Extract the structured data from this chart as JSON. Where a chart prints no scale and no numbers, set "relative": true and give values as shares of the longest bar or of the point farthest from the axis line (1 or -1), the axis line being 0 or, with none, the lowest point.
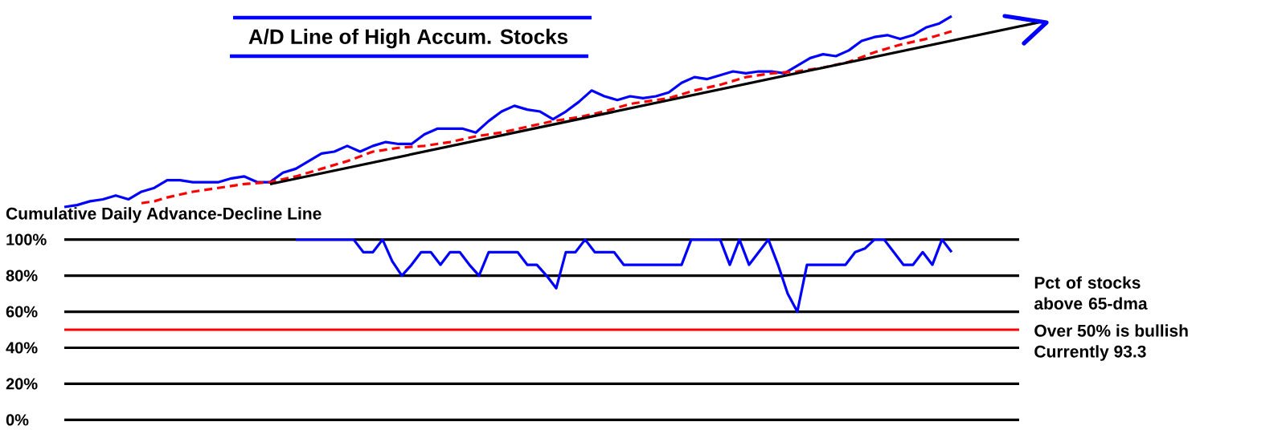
{
  "chart_data": [
    {
      "type": "line",
      "title": "A/D Line of High Accum. Stocks",
      "relative": true,
      "tick_labels": false,
      "marker": "none",
      "annotations": [
        "Cumulative Daily Advance-Decline Line"
      ],
      "categories": [
        null,
        null,
        null,
        null,
        null,
        null,
        null,
        null,
        null,
        null,
        null,
        null,
        null,
        null,
        null,
        null,
        null,
        null,
        null,
        null,
        null,
        null,
        null,
        null,
        null,
        null,
        null,
        null,
        null,
        null,
        null,
        null,
        null,
        null,
        null,
        null,
        null,
        null,
        null,
        null,
        null,
        null,
        null,
        null,
        null,
        null,
        null,
        null,
        null,
        null,
        null,
        null,
        null,
        null,
        null,
        null,
        null,
        null,
        null,
        null,
        null,
        null,
        null,
        null,
        null,
        null,
        null,
        null,
        null,
        null,
        null,
        null,
        null,
        null,
        null,
        null,
        null,
        null
      ],
      "series": [
        {
          "color": "#0000ff",
          "values": [
            0,
            0.01,
            0.03,
            0.04,
            0.06,
            0.04,
            0.08,
            0.1,
            0.14,
            0.14,
            0.13,
            0.13,
            0.13,
            0.15,
            0.16,
            0.13,
            0.13,
            0.18,
            0.2,
            0.24,
            0.28,
            0.29,
            0.32,
            0.29,
            0.32,
            0.34,
            0.33,
            0.33,
            0.38,
            0.41,
            0.41,
            0.41,
            0.39,
            0.45,
            0.5,
            0.53,
            0.51,
            0.5,
            0.46,
            0.5,
            0.55,
            0.61,
            0.58,
            0.56,
            0.58,
            0.57,
            0.58,
            0.6,
            0.65,
            0.68,
            0.67,
            0.69,
            0.71,
            0.7,
            0.71,
            0.71,
            0.7,
            0.74,
            0.78,
            0.8,
            0.79,
            0.82,
            0.87,
            0.89,
            0.9,
            0.88,
            0.9,
            0.94,
            0.96,
            1,
            null,
            null,
            null,
            null,
            null,
            null,
            null,
            null
          ]
        },
        {
          "color": "#ff0000",
          "line_style": "dashed",
          "values": [
            null,
            null,
            null,
            null,
            null,
            null,
            0.02,
            0.03,
            0.05,
            null,
            0.08,
            null,
            0.1,
            null,
            0.12,
            null,
            0.13,
            null,
            0.16,
            null,
            0.2,
            null,
            0.24,
            null,
            0.29,
            null,
            0.31,
            null,
            0.32,
            null,
            0.34,
            null,
            0.37,
            null,
            0.39,
            null,
            0.42,
            null,
            0.45,
            null,
            0.47,
            null,
            0.5,
            null,
            0.54,
            0.55,
            null,
            0.57,
            null,
            0.61,
            null,
            0.64,
            null,
            0.68,
            null,
            0.7,
            null,
            0.71,
            null,
            0.73,
            null,
            0.76,
            null,
            0.81,
            null,
            0.85,
            null,
            0.88,
            null,
            0.92,
            null,
            null,
            null,
            null,
            null,
            null,
            null,
            null
          ]
        },
        {
          "color": "#000000",
          "values": [
            null,
            null,
            null,
            null,
            null,
            null,
            null,
            null,
            null,
            null,
            null,
            null,
            null,
            null,
            null,
            null,
            0.12,
            null,
            null,
            null,
            null,
            null,
            null,
            null,
            null,
            null,
            null,
            null,
            null,
            null,
            null,
            null,
            null,
            null,
            null,
            null,
            null,
            null,
            null,
            null,
            null,
            null,
            null,
            null,
            null,
            null,
            null,
            null,
            null,
            null,
            null,
            null,
            null,
            null,
            null,
            null,
            null,
            null,
            null,
            null,
            null,
            null,
            null,
            null,
            null,
            null,
            null,
            null,
            null,
            null,
            null,
            null,
            null,
            null,
            null,
            null,
            0.97,
            null
          ]
        }
      ]
    },
    {
      "type": "line",
      "ylim": [
        0,
        100
      ],
      "tick_labels": "y",
      "grid": "y",
      "marker": "none",
      "yticks": [
        {
          "value": 0,
          "label": "0%"
        },
        {
          "value": 20,
          "label": "20%"
        },
        {
          "value": 40,
          "label": "40%"
        },
        {
          "value": 60,
          "label": "60%"
        },
        {
          "value": 80,
          "label": "80%"
        },
        {
          "value": 100,
          "label": "100%"
        }
      ],
      "ref_lines": [
        {
          "axis": "y",
          "value": 50,
          "label": "Over 50% is bullish",
          "color": "#ff0000"
        }
      ],
      "annotations": [
        "Pct of stocks above 65-dma",
        "Currently  93.3"
      ],
      "categories": [
        null,
        null,
        null,
        null,
        null,
        null,
        null,
        null,
        null,
        null,
        null,
        null,
        null,
        null,
        null,
        null,
        null,
        null,
        null,
        null,
        null,
        null,
        null,
        null,
        null,
        null,
        null,
        null,
        null,
        null,
        null,
        null,
        null,
        null,
        null,
        null,
        null,
        null,
        null,
        null,
        null,
        null,
        null,
        null,
        null,
        null,
        null,
        null,
        null,
        null,
        null,
        null,
        null,
        null,
        null,
        null,
        null,
        null,
        null,
        null,
        null,
        null,
        null,
        null,
        null,
        null,
        null,
        null,
        null,
        null,
        null,
        null,
        null,
        null,
        null,
        null,
        null,
        null,
        null,
        null,
        null,
        null,
        null,
        null,
        null,
        null,
        null,
        null,
        null,
        null,
        null,
        null,
        null,
        null,
        null,
        null,
        null,
        null,
        null,
        null
      ],
      "series": [
        {
          "color": "#0000ff",
          "values": [
            null,
            null,
            null,
            null,
            null,
            null,
            null,
            null,
            null,
            null,
            null,
            null,
            null,
            null,
            null,
            null,
            null,
            null,
            null,
            null,
            null,
            null,
            null,
            null,
            100,
            100,
            100,
            100,
            100,
            100,
            100,
            93,
            93,
            100,
            88,
            80,
            86,
            93,
            93,
            86,
            93,
            93,
            86,
            80,
            93,
            93,
            93,
            93,
            86,
            86,
            80,
            73,
            93,
            93,
            100,
            93,
            93,
            93,
            86,
            86,
            86,
            86,
            86,
            86,
            86,
            100,
            100,
            100,
            100,
            86,
            100,
            86,
            93,
            100,
            86,
            70,
            60,
            86,
            86,
            86,
            86,
            86,
            93,
            95,
            100,
            100,
            93,
            86,
            86,
            93,
            86,
            100,
            93,
            null,
            null,
            null,
            null,
            null,
            null,
            null
          ]
        }
      ]
    }
  ]
}
